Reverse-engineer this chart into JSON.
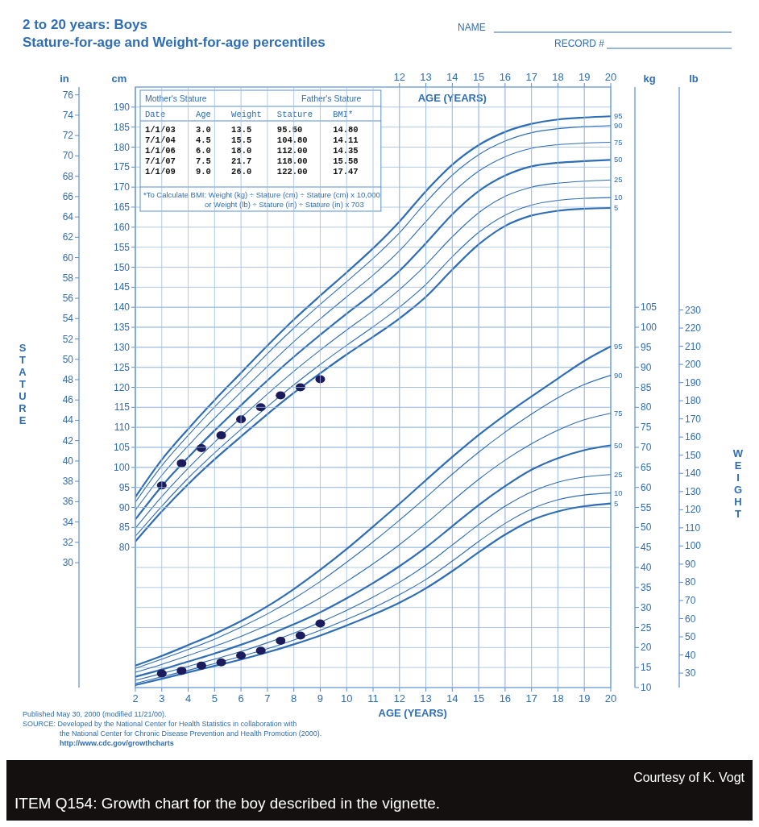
{
  "chart_data": [
    {
      "type": "line",
      "title": "2 to 20 years: Boys",
      "subtitle": "Stature-for-age and Weight-for-age percentiles",
      "xlabel": "AGE (YEARS)",
      "y2label": "STATURE",
      "xlim": [
        2,
        20
      ],
      "xticks": [
        12,
        13,
        14,
        15,
        16,
        17,
        18,
        19,
        20
      ],
      "ylim": [
        45,
        195
      ],
      "yticks": [
        80,
        85,
        90,
        95,
        100,
        105,
        110,
        115,
        120,
        125,
        130,
        135,
        140,
        145,
        150,
        155,
        160,
        165,
        170,
        175,
        180,
        185,
        190
      ],
      "y2lim": [
        17.72,
        76.77
      ],
      "y2ticks": [
        30,
        32,
        34,
        36,
        38,
        40,
        42,
        44,
        46,
        48,
        50,
        52,
        54,
        56,
        58,
        60,
        62,
        64,
        66,
        68,
        70,
        72,
        74,
        76
      ],
      "grid": true,
      "marker": "none",
      "x": [
        2,
        3,
        4,
        5,
        6,
        7,
        8,
        9,
        10,
        11,
        12,
        13,
        14,
        15,
        16,
        17,
        18,
        19,
        20
      ],
      "series": [
        {
          "name": "5",
          "color": "#2f6db5",
          "values": [
            81.5,
            89.0,
            95.8,
            102.0,
            107.7,
            113.3,
            118.6,
            123.5,
            128.2,
            132.6,
            137.2,
            142.6,
            149.4,
            155.7,
            160.3,
            162.9,
            164.1,
            164.6,
            164.8
          ]
        },
        {
          "name": "10",
          "color": "#2f6db5",
          "values": [
            82.8,
            90.3,
            97.3,
            103.6,
            109.5,
            115.2,
            120.6,
            125.7,
            130.5,
            135.1,
            140.0,
            145.7,
            152.6,
            158.7,
            163.0,
            165.5,
            166.7,
            167.2,
            167.4
          ]
        },
        {
          "name": "25",
          "color": "#2f6db5",
          "values": [
            84.8,
            92.7,
            99.8,
            106.3,
            112.4,
            118.3,
            124.0,
            129.3,
            134.3,
            139.1,
            144.4,
            150.6,
            157.6,
            163.6,
            167.7,
            170.0,
            171.0,
            171.5,
            171.8
          ]
        },
        {
          "name": "50",
          "color": "#2f6db5",
          "values": [
            87.0,
            95.3,
            102.5,
            109.2,
            115.5,
            121.7,
            127.6,
            133.1,
            138.4,
            143.5,
            149.1,
            156.0,
            163.2,
            169.0,
            172.9,
            175.2,
            176.1,
            176.5,
            176.8
          ]
        },
        {
          "name": "75",
          "color": "#2f6db5",
          "values": [
            89.3,
            98.0,
            105.4,
            112.3,
            118.8,
            125.2,
            131.4,
            137.1,
            142.6,
            148.0,
            154.1,
            161.4,
            168.5,
            174.0,
            177.6,
            179.7,
            180.6,
            181.0,
            181.2
          ]
        },
        {
          "name": "90",
          "color": "#2f6db5",
          "values": [
            91.3,
            100.4,
            108.0,
            115.1,
            121.7,
            128.4,
            134.8,
            140.7,
            146.4,
            152.2,
            158.6,
            166.2,
            173.0,
            178.1,
            181.5,
            183.6,
            184.6,
            185.1,
            185.4
          ]
        },
        {
          "name": "95",
          "color": "#2f6db5",
          "values": [
            92.6,
            101.9,
            109.6,
            116.8,
            123.6,
            130.4,
            136.9,
            142.9,
            148.7,
            154.7,
            161.4,
            169.0,
            175.6,
            180.5,
            183.8,
            185.8,
            186.9,
            187.4,
            187.7
          ]
        },
        {
          "type": "scatter",
          "marker": "circle",
          "color": "#1c1c5c",
          "x": [
            3,
            3.75,
            4.5,
            5.25,
            6,
            6.75,
            7.5,
            8.25,
            9
          ],
          "values": [
            95.5,
            101,
            104.8,
            108,
            112,
            115,
            118,
            120,
            122
          ]
        }
      ],
      "annotations": [
        "NAME",
        "RECORD #",
        "Mother's Stature",
        "Father's Stature",
        "Date      Age    Weight   Stature    BMI*",
        "1/1/03    3.0    13.5     95.50      14.80",
        "7/1/04    4.5    15.5     104.80     14.11",
        "1/1/06    6.0    18.0     112.00     14.35",
        "7/1/07    7.5    21.7     118.00     15.58",
        "1/1/09    9.0    26.0     122.00     17.47",
        "*To Calculate BMI: Weight (kg) ÷ Stature (cm) ÷ Stature (cm) x 10,000",
        "or Weight (lb) ÷ Stature (in) ÷ Stature (in) x 703",
        "cm",
        "in"
      ]
    },
    {
      "type": "line",
      "xlabel": "AGE (YEARS)",
      "y2label": "WEIGHT",
      "xlim": [
        2,
        20
      ],
      "xticks": [
        2,
        3,
        4,
        5,
        6,
        7,
        8,
        9,
        10,
        11,
        12,
        13,
        14,
        15,
        16,
        17,
        18,
        19,
        20
      ],
      "ylim": [
        10,
        160
      ],
      "yticks": [
        10,
        15,
        20,
        25,
        30,
        35,
        40,
        45,
        50,
        55,
        60,
        65,
        70,
        75,
        80,
        85,
        90,
        95,
        100,
        105
      ],
      "y2lim": [
        22.05,
        352.74
      ],
      "y2ticks": [
        30,
        40,
        50,
        60,
        70,
        80,
        90,
        100,
        110,
        120,
        130,
        140,
        150,
        160,
        170,
        180,
        190,
        200,
        210,
        220,
        230
      ],
      "grid": true,
      "marker": "none",
      "x": [
        2,
        3,
        4,
        5,
        6,
        7,
        8,
        9,
        10,
        11,
        12,
        13,
        14,
        15,
        16,
        17,
        18,
        19,
        20
      ],
      "series": [
        {
          "name": "5",
          "color": "#2f6db5",
          "values": [
            10.6,
            12.2,
            13.8,
            15.4,
            17.0,
            18.8,
            20.8,
            23.0,
            25.5,
            28.2,
            31.2,
            34.8,
            39.1,
            43.8,
            48.2,
            51.8,
            54.0,
            55.3,
            56.0
          ]
        },
        {
          "name": "10",
          "color": "#2f6db5",
          "values": [
            11.0,
            12.7,
            14.3,
            16.0,
            17.8,
            19.7,
            21.9,
            24.3,
            27.0,
            29.9,
            33.2,
            37.0,
            41.6,
            46.5,
            51.0,
            54.6,
            56.9,
            58.1,
            58.6
          ]
        },
        {
          "name": "25",
          "color": "#2f6db5",
          "values": [
            11.8,
            13.5,
            15.3,
            17.1,
            19.0,
            21.2,
            23.6,
            26.3,
            29.3,
            32.6,
            36.3,
            40.6,
            45.6,
            50.7,
            55.3,
            58.9,
            61.3,
            62.6,
            63.2
          ]
        },
        {
          "name": "50",
          "color": "#2f6db5",
          "values": [
            12.7,
            14.5,
            16.5,
            18.5,
            20.7,
            23.1,
            25.8,
            28.8,
            32.3,
            36.1,
            40.3,
            45.0,
            50.3,
            55.6,
            60.3,
            64.4,
            67.3,
            69.3,
            70.5
          ]
        },
        {
          "name": "75",
          "color": "#2f6db5",
          "values": [
            13.8,
            15.8,
            18.0,
            20.3,
            22.8,
            25.6,
            28.8,
            32.4,
            36.5,
            40.9,
            45.7,
            51.0,
            56.6,
            62.0,
            66.8,
            70.9,
            74.3,
            76.9,
            78.5
          ]
        },
        {
          "name": "90",
          "color": "#2f6db5",
          "values": [
            14.8,
            17.1,
            19.5,
            22.1,
            25.1,
            28.4,
            32.2,
            36.5,
            41.3,
            46.4,
            51.8,
            57.5,
            63.3,
            68.8,
            73.8,
            78.3,
            82.4,
            85.7,
            88.0
          ]
        },
        {
          "name": "95",
          "color": "#2f6db5",
          "values": [
            15.5,
            17.9,
            20.6,
            23.4,
            26.6,
            30.3,
            34.6,
            39.4,
            44.6,
            50.2,
            55.9,
            61.8,
            67.6,
            73.1,
            78.1,
            82.7,
            87.2,
            91.6,
            95.2
          ]
        },
        {
          "type": "scatter",
          "marker": "circle",
          "color": "#1c1c5c",
          "x": [
            3,
            3.75,
            4.5,
            5.25,
            6,
            6.75,
            7.5,
            8.25,
            9
          ],
          "values": [
            13.5,
            14.2,
            15.5,
            16.3,
            18.0,
            19.2,
            21.7,
            23.0,
            26.0
          ]
        }
      ],
      "annotations": [
        "kg",
        "lb",
        "Published May 30, 2000 (modified 11/21/00).",
        "SOURCE: Developed by the National Center for Health Statistics in collaboration with",
        "the National Center for Chronic Disease Prevention and Health Promotion (2000).",
        "http://www.cdc.gov/growthcharts",
        "Courtesy of K. Vogt",
        "ITEM Q154: Growth chart for the boy described in the vignette."
      ]
    }
  ]
}
